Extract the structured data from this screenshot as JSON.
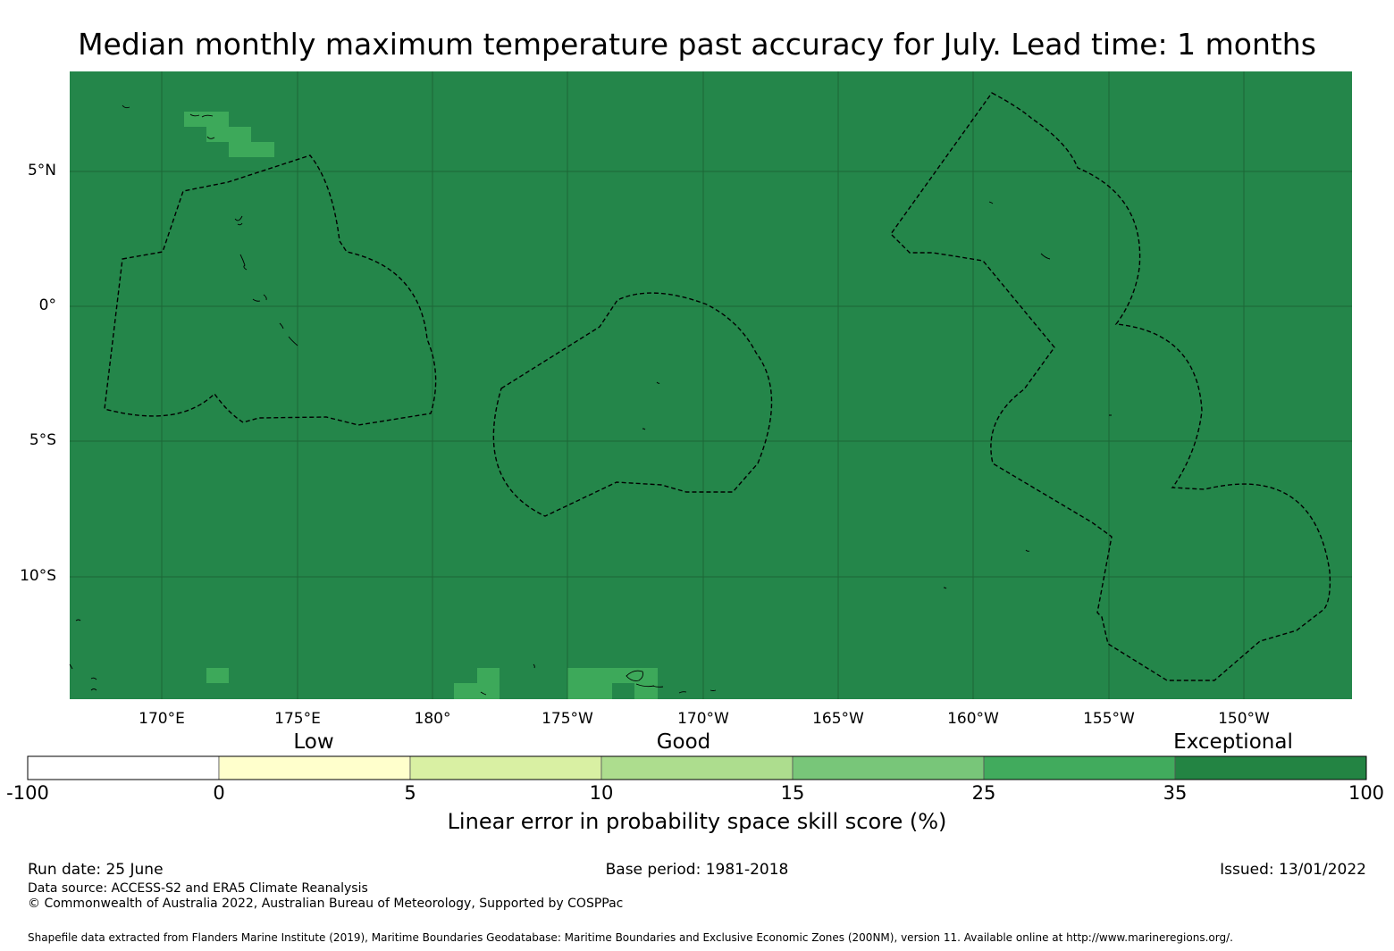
{
  "title": "Median monthly maximum temperature past accuracy for July. Lead time: 1 months",
  "map": {
    "background_color": "#24864a",
    "patch_color": "#3da95a",
    "lon_range": [
      166.67,
      -147.33
    ],
    "lat_range": [
      -14.6,
      8.6
    ],
    "lat_ticks": [
      {
        "value": 5,
        "label": "5°N"
      },
      {
        "value": 0,
        "label": "0°"
      },
      {
        "value": -5,
        "label": "5°S"
      },
      {
        "value": -10,
        "label": "10°S"
      }
    ],
    "lon_ticks": [
      {
        "value": 170,
        "label": "170°E"
      },
      {
        "value": 175,
        "label": "175°E"
      },
      {
        "value": 180,
        "label": "180°"
      },
      {
        "value": -175,
        "label": "175°W"
      },
      {
        "value": -170,
        "label": "170°W"
      },
      {
        "value": -165,
        "label": "165°W"
      },
      {
        "value": -160,
        "label": "160°W"
      },
      {
        "value": -155,
        "label": "155°W"
      },
      {
        "value": -150,
        "label": "150°W"
      }
    ]
  },
  "legend": {
    "categories": [
      "Low",
      "Good",
      "Exceptional"
    ],
    "bins": [
      {
        "from": -100,
        "to": 0,
        "color": "#ffffff"
      },
      {
        "from": 0,
        "to": 5,
        "color": "#ffffcc"
      },
      {
        "from": 5,
        "to": 10,
        "color": "#d9f0a3"
      },
      {
        "from": 10,
        "to": 15,
        "color": "#addd8e"
      },
      {
        "from": 15,
        "to": 25,
        "color": "#78c679"
      },
      {
        "from": 25,
        "to": 35,
        "color": "#41ab5d"
      },
      {
        "from": 35,
        "to": 100,
        "color": "#238443"
      }
    ],
    "ticks": [
      "-100",
      "0",
      "5",
      "10",
      "15",
      "25",
      "35",
      "100"
    ],
    "title": "Linear error in probability space skill score (%)"
  },
  "footer": {
    "run_date": "Run date: 25 June",
    "base_period": "Base period: 1981-2018",
    "issued": "Issued: 13/01/2022",
    "data_source": "Data source: ACCESS-S2 and ERA5 Climate Reanalysis",
    "copyright": "© Commonwealth of Australia 2022, Australian Bureau of Meteorology, Supported by COSPPac",
    "shapefile": "Shapefile data extracted from Flanders Marine Institute (2019), Maritime Boundaries Geodatabase: Maritime Boundaries and Exclusive Economic Zones (200NM), version 11. Available online at http://www.marineregions.org/."
  }
}
